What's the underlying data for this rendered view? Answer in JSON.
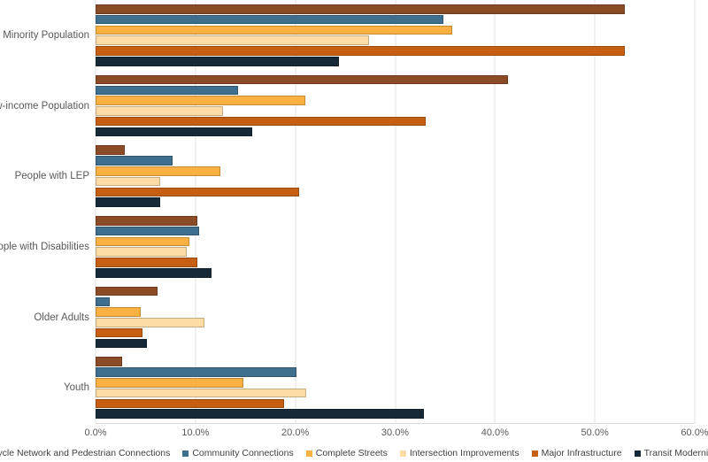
{
  "chart_data": {
    "type": "bar",
    "orientation": "horizontal",
    "title": "",
    "xlabel": "",
    "ylabel": "",
    "grid": "vertical",
    "legend_position": "bottom",
    "categories": [
      "Minority Population",
      "Low-income Population",
      "People with LEP",
      "People with Disabilities",
      "Older Adults",
      "Youth"
    ],
    "series": [
      {
        "name": "Bicycle Network and Pedestrian Connections",
        "color": "#8B4B26",
        "values": [
          53.0,
          41.3,
          2.9,
          10.2,
          6.2,
          2.7
        ]
      },
      {
        "name": "Community Connections",
        "color": "#3F6F8F",
        "values": [
          34.8,
          14.3,
          7.7,
          10.4,
          1.4,
          20.1
        ]
      },
      {
        "name": "Complete Streets",
        "color": "#FBB042",
        "values": [
          35.7,
          21.0,
          12.5,
          9.4,
          4.5,
          14.8
        ]
      },
      {
        "name": "Intersection Improvements",
        "color": "#FDDCA6",
        "values": [
          27.4,
          12.8,
          6.5,
          9.1,
          10.9,
          21.1
        ]
      },
      {
        "name": "Major Infrastructure",
        "color": "#C75F12",
        "values": [
          53.0,
          33.1,
          20.4,
          10.2,
          4.7,
          18.9
        ]
      },
      {
        "name": "Transit Modernization",
        "color": "#152938",
        "values": [
          24.4,
          15.7,
          6.5,
          11.6,
          5.1,
          32.9
        ]
      }
    ],
    "x_axis": {
      "min": 0,
      "max": 60,
      "tick_step": 10,
      "tick_labels": [
        "0.0%",
        "10.0%",
        "20.0%",
        "30.0%",
        "40.0%",
        "50.0%",
        "60.0%"
      ]
    }
  },
  "styles": {
    "grid_color": "#E2E2E2",
    "axis_line_color": "#D9D9D9",
    "axis_text_color": "#595959",
    "legend_text_color": "#404040",
    "background": "#FFFFFF"
  }
}
